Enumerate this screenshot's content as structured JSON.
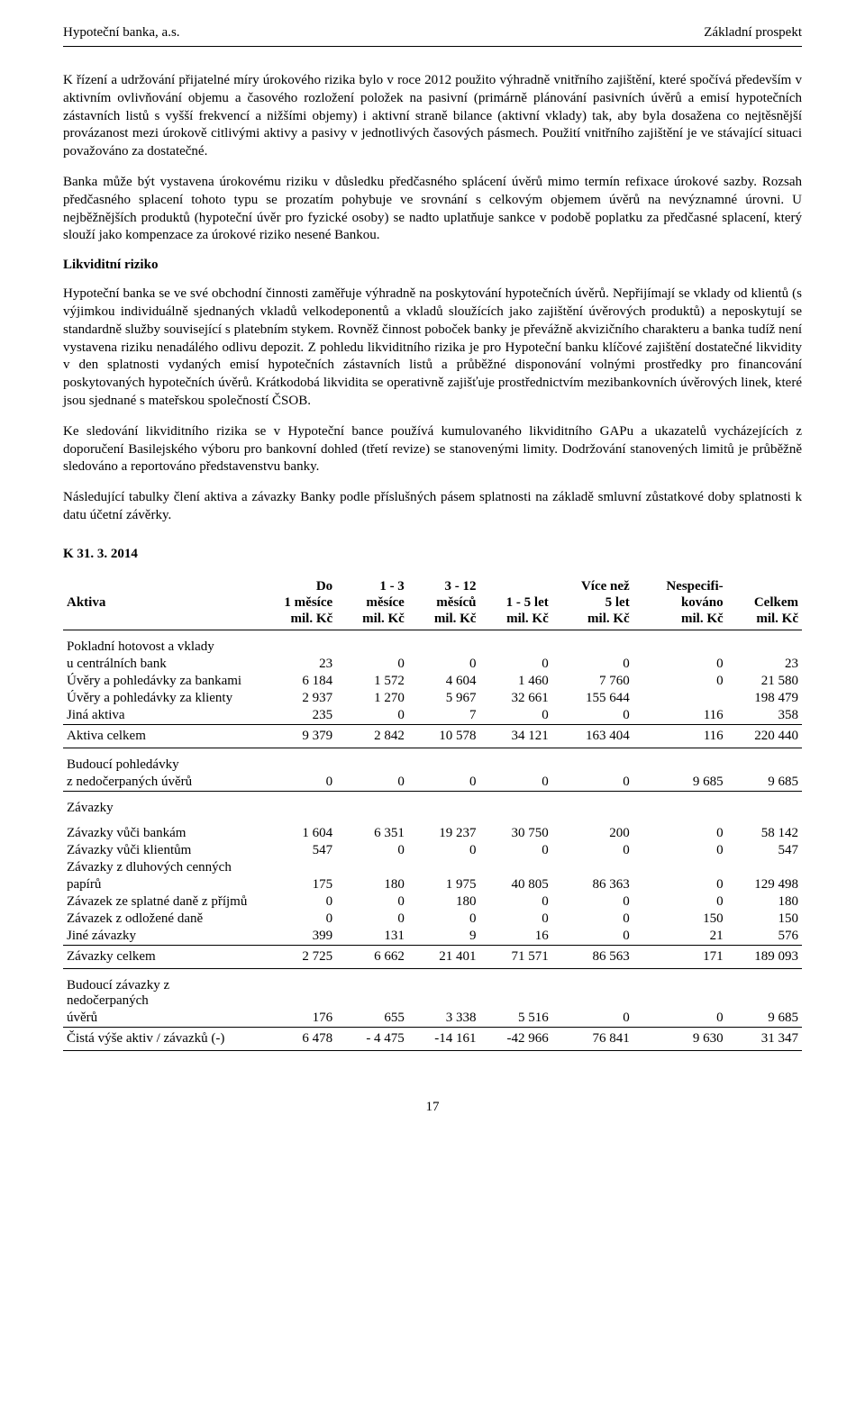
{
  "header": {
    "left": "Hypoteční banka, a.s.",
    "right": "Základní prospekt"
  },
  "paragraphs": {
    "p1": "K řízení a udržování přijatelné míry úrokového rizika bylo v roce 2012 použito výhradně vnitřního zajištění, které spočívá především v aktivním ovlivňování objemu a časového rozložení položek na pasivní (primárně plánování pasivních úvěrů a emisí hypotečních zástavních listů s vyšší frekvencí a nižšími objemy) i aktivní straně bilance (aktivní vklady) tak, aby byla dosažena co nejtěsnější provázanost mezi úrokově citlivými aktivy a pasivy v jednotlivých časových pásmech. Použití vnitřního zajištění je ve stávající situaci považováno za dostatečné.",
    "p2": "Banka může být vystavena úrokovému riziku v důsledku předčasného splácení úvěrů mimo termín refixace úrokové sazby. Rozsah předčasného splacení tohoto typu se prozatím pohybuje ve srovnání s celkovým objemem úvěrů na nevýznamné úrovni. U nejběžnějších produktů (hypoteční úvěr pro fyzické osoby) se nadto uplatňuje sankce v podobě poplatku za předčasné splacení, který slouží jako kompenzace za úrokové riziko nesené Bankou.",
    "p3": "Hypoteční banka se ve své obchodní činnosti zaměřuje výhradně na poskytování hypotečních úvěrů. Nepřijímají se vklady od klientů (s výjimkou individuálně sjednaných vkladů velkodeponentů a vkladů sloužících jako zajištění úvěrových produktů) a neposkytují se standardně služby související s platebním stykem. Rovněž činnost poboček banky je převážně akvizičního charakteru a banka tudíž není vystavena riziku nenadálého odlivu depozit. Z pohledu likviditního rizika je pro Hypoteční banku klíčové zajištění dostatečné likvidity v den splatnosti vydaných emisí hypotečních zástavních listů a průběžné disponování volnými prostředky pro financování poskytovaných hypotečních úvěrů. Krátkodobá likvidita se operativně zajišťuje prostřednictvím mezibankovních úvěrových linek, které jsou sjednané s mateřskou společností ČSOB.",
    "p4": "Ke sledování likviditního rizika se v Hypoteční bance používá kumulovaného likviditního GAPu a ukazatelů vycházejících z doporučení Basilejského výboru pro bankovní dohled (třetí revize) se stanovenými limity. Dodržování stanovených limitů je průběžně sledováno a reportováno představenstvu banky.",
    "p5": "Následující tabulky člení aktiva a závazky Banky podle příslušných pásem splatnosti na základě smluvní zůstatkové doby splatnosti k datu účetní závěrky."
  },
  "headings": {
    "liquidity": "Likviditní riziko",
    "date": "K 31. 3. 2014"
  },
  "table": {
    "columns": {
      "c0": {
        "l1": "",
        "l2": "Aktiva",
        "l3": ""
      },
      "c1": {
        "l1": "Do",
        "l2": "1 měsíce",
        "l3": "mil. Kč"
      },
      "c2": {
        "l1": "1 - 3",
        "l2": "měsíce",
        "l3": "mil. Kč"
      },
      "c3": {
        "l1": "3 - 12",
        "l2": "měsíců",
        "l3": "mil. Kč"
      },
      "c4": {
        "l1": "",
        "l2": "1 - 5 let",
        "l3": "mil. Kč"
      },
      "c5": {
        "l1": "Více než",
        "l2": "5 let",
        "l3": "mil. Kč"
      },
      "c6": {
        "l1": "Nespecifi-",
        "l2": "kováno",
        "l3": "mil. Kč"
      },
      "c7": {
        "l1": "",
        "l2": "Celkem",
        "l3": "mil. Kč"
      }
    },
    "rows": {
      "r0": {
        "label_a": "Pokladní hotovost a vklady",
        "label_b": "u centrálních bank",
        "v": [
          "23",
          "0",
          "0",
          "0",
          "0",
          "0",
          "23"
        ]
      },
      "r1": {
        "label": "Úvěry a pohledávky za bankami",
        "v": [
          "6 184",
          "1 572",
          "4 604",
          "1 460",
          "7 760",
          "0",
          "21 580"
        ]
      },
      "r2": {
        "label": "Úvěry a pohledávky za klienty",
        "v": [
          "2 937",
          "1 270",
          "5 967",
          "32 661",
          "155 644",
          "",
          "198 479"
        ]
      },
      "r3": {
        "label": "Jiná aktiva",
        "v": [
          "235",
          "0",
          "7",
          "0",
          "0",
          "116",
          "358"
        ]
      },
      "r4": {
        "label": "Aktiva celkem",
        "v": [
          "9 379",
          "2 842",
          "10 578",
          "34 121",
          "163 404",
          "116",
          "220 440"
        ]
      },
      "r5": {
        "label_a": "Budoucí pohledávky",
        "label_b": "z nedočerpaných úvěrů",
        "v": [
          "0",
          "0",
          "0",
          "0",
          "0",
          "9 685",
          "9 685"
        ]
      },
      "r6": {
        "label": "Závazky"
      },
      "r7": {
        "label": "Závazky vůči bankám",
        "v": [
          "1 604",
          "6 351",
          "19 237",
          "30 750",
          "200",
          "0",
          "58 142"
        ]
      },
      "r8": {
        "label": "Závazky vůči klientům",
        "v": [
          "547",
          "0",
          "0",
          "0",
          "0",
          "0",
          "547"
        ]
      },
      "r9": {
        "label_a": "Závazky z dluhových cenných",
        "label_b": "papírů",
        "v": [
          "175",
          "180",
          "1 975",
          "40 805",
          "86 363",
          "0",
          "129 498"
        ]
      },
      "r10": {
        "label": "Závazek ze splatné daně z příjmů",
        "v": [
          "0",
          "0",
          "180",
          "0",
          "0",
          "0",
          "180"
        ]
      },
      "r11": {
        "label": "Závazek z odložené daně",
        "v": [
          "0",
          "0",
          "0",
          "0",
          "0",
          "150",
          "150"
        ]
      },
      "r12": {
        "label": "Jiné závazky",
        "v": [
          "399",
          "131",
          "9",
          "16",
          "0",
          "21",
          "576"
        ]
      },
      "r13": {
        "label": "Závazky celkem",
        "v": [
          "2 725",
          "6 662",
          "21 401",
          "71 571",
          "86 563",
          "171",
          "189 093"
        ]
      },
      "r14": {
        "label_a": "Budoucí závazky z nedočerpaných",
        "label_b": "úvěrů",
        "v": [
          "176",
          "655",
          "3 338",
          "5 516",
          "0",
          "0",
          "9 685"
        ]
      },
      "r15": {
        "label": "Čistá výše aktiv / závazků (-)",
        "v": [
          "6 478",
          "- 4 475",
          "-14 161",
          "-42 966",
          "76 841",
          "9 630",
          "31 347"
        ]
      }
    }
  },
  "page_number": "17"
}
